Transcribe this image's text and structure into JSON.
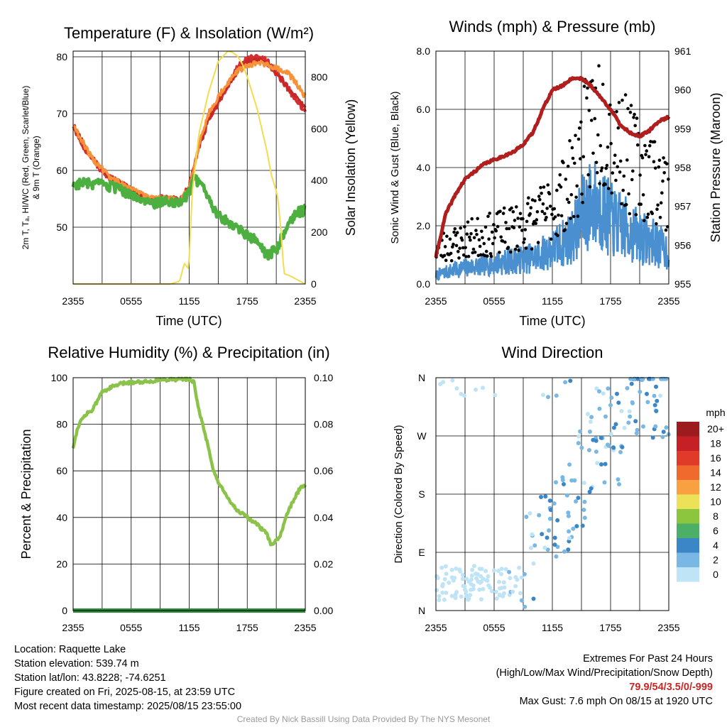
{
  "panels": {
    "temperature": {
      "title": "Temperature (F) & Insolation (W/m²)",
      "ylabel_left_1": "2m T, Tₐ, HI/WC (Red, Green, Scarlet/Blue)",
      "ylabel_left_2": "& 9m T (Orange)",
      "ylabel_right": "Solar Insolation (Yellow)",
      "xlabel": "Time (UTC)"
    },
    "winds": {
      "title": "Winds (mph) & Pressure (mb)",
      "ylabel_left": "Sonic Wind & Gust (Blue, Black)",
      "ylabel_right": "Station Pressure (Maroon)",
      "xlabel": "Time (UTC)"
    },
    "humidity": {
      "title": "Relative Humidity (%) & Precipitation (in)",
      "ylabel_left": "Percent & Precipitation"
    },
    "direction": {
      "title": "Wind Direction",
      "ylabel_left": "Direction (Colored By Speed)",
      "colorbar_title": "mph"
    }
  },
  "chart_data": [
    {
      "id": "temperature",
      "type": "line",
      "x_tick_labels": [
        "2355",
        "0555",
        "1155",
        "1755",
        "2355"
      ],
      "x_range_hours": [
        0,
        24
      ],
      "ylim_left": [
        40,
        81
      ],
      "yticks_left": [
        50,
        60,
        70,
        80
      ],
      "ylim_right": [
        0,
        900
      ],
      "yticks_right": [
        0,
        200,
        400,
        600,
        800
      ],
      "series": [
        {
          "color": "#d32f2f",
          "axis": "left",
          "hours": [
            0,
            1,
            2,
            3,
            4,
            5,
            6,
            7,
            8,
            9,
            10,
            11,
            12,
            13,
            14,
            15,
            16,
            17,
            18,
            19,
            20,
            21,
            22,
            23,
            24
          ],
          "values": [
            68,
            64.5,
            62,
            60,
            58.5,
            57.5,
            56.5,
            55.5,
            54.5,
            55,
            55,
            54.5,
            57,
            64,
            69,
            72,
            75,
            78,
            79.5,
            79.8,
            79.3,
            77.5,
            75,
            72.5,
            70.5
          ]
        },
        {
          "color": "#c62828",
          "axis": "left",
          "hours": [
            0,
            2,
            4,
            6,
            8,
            9,
            10,
            11,
            12,
            13,
            14,
            15,
            16,
            17,
            18,
            19,
            20,
            21,
            22,
            23,
            24
          ],
          "values": [
            68,
            62,
            58.5,
            56.5,
            54.5,
            55,
            55,
            54.5,
            57,
            64,
            69,
            72,
            75,
            77.5,
            79.2,
            79.5,
            79,
            77,
            75,
            73,
            71
          ]
        },
        {
          "color": "#f7923a",
          "axis": "left",
          "hours": [
            0,
            2,
            4,
            6,
            8,
            9,
            10,
            11,
            12,
            13,
            14,
            15,
            16,
            17,
            18,
            19,
            20,
            21,
            22,
            23,
            24
          ],
          "values": [
            68,
            62,
            58.5,
            57,
            55,
            55,
            55,
            54.5,
            57,
            64.5,
            70,
            73,
            75.5,
            77.5,
            78.5,
            79,
            78.5,
            78,
            77.5,
            75.5,
            73
          ]
        },
        {
          "color": "#4caf40",
          "axis": "left",
          "hours": [
            0,
            1,
            2,
            3,
            4,
            5,
            6,
            7,
            8,
            9,
            10,
            11,
            12,
            12.5,
            13,
            14,
            15,
            16,
            17,
            18,
            19,
            20,
            21,
            22,
            23,
            24
          ],
          "values": [
            57.5,
            57.8,
            57.5,
            57.5,
            57,
            56.5,
            55.5,
            55,
            54,
            54.5,
            54.5,
            54.5,
            56,
            58.5,
            58,
            55,
            52,
            51,
            50,
            48.5,
            47.5,
            45,
            46,
            50,
            52.5,
            53
          ]
        },
        {
          "color": "#f2dc50",
          "axis": "right",
          "hours": [
            0,
            6,
            10,
            11,
            11.5,
            11.9,
            12,
            12.3,
            13,
            14,
            15,
            16,
            16.5,
            17,
            17.5,
            18,
            19,
            20,
            20.5,
            21,
            21.2,
            21.5,
            21.8,
            22.5,
            23,
            24
          ],
          "values": [
            0,
            0,
            0,
            10,
            80,
            60,
            100,
            350,
            580,
            740,
            860,
            900,
            895,
            880,
            850,
            800,
            680,
            520,
            420,
            360,
            320,
            200,
            40,
            30,
            20,
            0
          ]
        }
      ]
    },
    {
      "id": "winds",
      "type": "scatter",
      "x_tick_labels": [
        "2355",
        "0555",
        "1155",
        "1755",
        "2355"
      ],
      "x_range_hours": [
        0,
        24
      ],
      "ylim_left": [
        0,
        8
      ],
      "yticks_left": [
        0.0,
        2.0,
        4.0,
        6.0,
        8.0
      ],
      "ylim_right": [
        955,
        961
      ],
      "yticks_right": [
        955,
        956,
        957,
        958,
        959,
        960,
        961
      ],
      "sonic_wind_mean": {
        "color": "#4a90d0",
        "hours": [
          0,
          2,
          4,
          6,
          8,
          10,
          12,
          14,
          15,
          16,
          17,
          18,
          19,
          20,
          21,
          22,
          23,
          24
        ],
        "values": [
          0.3,
          0.5,
          0.6,
          0.7,
          0.8,
          0.9,
          1.2,
          1.6,
          2.3,
          2.8,
          2.6,
          2.2,
          2.0,
          1.8,
          1.6,
          1.5,
          1.3,
          1.1
        ]
      },
      "pressure": {
        "color": "#b01e1e",
        "hours": [
          0,
          1,
          2,
          3,
          4,
          5,
          6,
          7,
          8,
          9,
          10,
          11,
          12,
          13,
          14,
          15,
          16,
          17,
          18,
          19,
          20,
          21,
          22,
          23,
          24
        ],
        "values": [
          955.7,
          956.8,
          957.3,
          957.7,
          957.9,
          958.1,
          958.2,
          958.3,
          958.4,
          958.6,
          958.9,
          959.5,
          960.0,
          960.1,
          960.3,
          960.3,
          960.1,
          959.8,
          959.5,
          959.1,
          958.9,
          958.8,
          958.95,
          959.2,
          959.3
        ]
      },
      "gust_mean": {
        "color": "#000000",
        "hours": [
          0,
          2,
          4,
          6,
          8,
          10,
          12,
          14,
          15,
          16,
          17,
          18,
          19,
          20,
          21,
          22,
          23,
          24
        ],
        "values": [
          1.2,
          1.4,
          1.6,
          1.7,
          1.9,
          2.2,
          2.6,
          3.5,
          4.5,
          5.5,
          5.8,
          5.3,
          4.8,
          4.3,
          4.0,
          3.8,
          3.5,
          3.2
        ]
      }
    },
    {
      "id": "humidity",
      "type": "line",
      "x_tick_labels": [
        "2355",
        "0555",
        "1155",
        "1755",
        "2355"
      ],
      "x_range_hours": [
        0,
        24
      ],
      "ylim_left": [
        0,
        100
      ],
      "yticks_left": [
        0,
        20,
        40,
        60,
        80,
        100
      ],
      "ylim_right": [
        0,
        0.1
      ],
      "yticks_right": [
        "0.00",
        "0.02",
        "0.04",
        "0.06",
        "0.08",
        "0.10"
      ],
      "series": [
        {
          "color": "#8bc34a",
          "axis": "left",
          "hours": [
            0,
            0.5,
            1,
            1.5,
            2,
            2.5,
            3,
            4,
            5,
            6,
            7,
            8,
            9,
            10,
            11,
            12,
            12.5,
            13,
            14,
            14.5,
            15,
            16,
            17,
            18,
            19,
            20,
            20.5,
            21,
            21.5,
            22,
            22.5,
            23,
            23.5,
            24
          ],
          "values": [
            70,
            79,
            83,
            85,
            86,
            90,
            94,
            96,
            97.5,
            98,
            98.3,
            98.5,
            99,
            99.3,
            99.3,
            99.5,
            98,
            86,
            70,
            60,
            55,
            48,
            43,
            40,
            37,
            33,
            28,
            30,
            33,
            40,
            45,
            49,
            53,
            54
          ]
        },
        {
          "color": "#2e8b3a",
          "axis": "right",
          "hours": [
            0,
            24
          ],
          "values": [
            0,
            0
          ]
        }
      ]
    },
    {
      "id": "direction",
      "type": "scatter",
      "x_tick_labels": [
        "2355",
        "0555",
        "1155",
        "1755",
        "2355"
      ],
      "x_range_hours": [
        0,
        24
      ],
      "ylim_left": [
        0,
        360
      ],
      "y_tick_labels": [
        "N",
        "E",
        "S",
        "W",
        "N"
      ],
      "y_tick_degrees": [
        0,
        90,
        180,
        270,
        360
      ],
      "colorbar_labels": [
        "20+",
        "18",
        "16",
        "14",
        "12",
        "10",
        "8",
        "6",
        "4",
        "2",
        "0"
      ],
      "colorbar_colors": [
        "#9b1b1e",
        "#c62027",
        "#e03a2b",
        "#f06a2e",
        "#f8a042",
        "#ebe25a",
        "#8cc63f",
        "#4caf68",
        "#3b86c6",
        "#79b8e4",
        "#bfe4f6"
      ]
    }
  ],
  "footer": {
    "location": "Location: Raquette Lake",
    "elevation": "Station elevation: 539.74 m",
    "latlon": "Station lat/lon: 43.8228; -74.6251",
    "created": "Figure created on Fri, 2025-08-15, at 23:59 UTC",
    "recent": "Most recent data timestamp: 2025/08/15 23:55:00",
    "extremes_title": "Extremes For Past 24 Hours",
    "extremes_sub": "(High/Low/Max Wind/Precipitation/Snow Depth)",
    "extremes_values": "79.9/54/3.5/0/-999",
    "max_gust": "Max Gust: 7.6 mph On 08/15 at 1920 UTC",
    "credit": "Created By Nick Bassill Using Data Provided By The NYS Mesonet"
  }
}
